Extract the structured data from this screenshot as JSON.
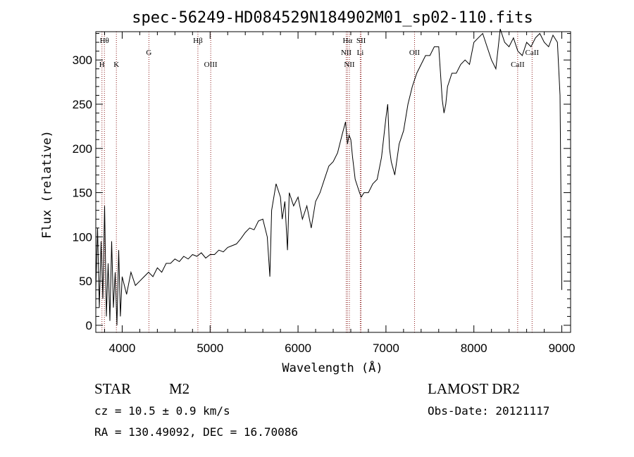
{
  "chart_data": {
    "type": "line",
    "title": "spec-56249-HD084529N184902M01_sp02-110.fits",
    "xlabel": "Wavelength (Å)",
    "ylabel": "Flux (relative)",
    "xlim": [
      3700,
      9100
    ],
    "ylim": [
      -8,
      332
    ],
    "x_ticks": [
      4000,
      5000,
      6000,
      7000,
      8000,
      9000
    ],
    "y_ticks": [
      0,
      50,
      100,
      150,
      200,
      250,
      300
    ],
    "grid": false,
    "series": [
      {
        "x": [
          3700,
          3720,
          3740,
          3760,
          3780,
          3800,
          3820,
          3840,
          3860,
          3880,
          3900,
          3920,
          3940,
          3960,
          3980,
          4000,
          4050,
          4100,
          4150,
          4200,
          4250,
          4300,
          4350,
          4400,
          4450,
          4500,
          4550,
          4600,
          4650,
          4700,
          4750,
          4800,
          4850,
          4900,
          4950,
          5000,
          5050,
          5100,
          5150,
          5200,
          5250,
          5300,
          5350,
          5400,
          5450,
          5500,
          5550,
          5600,
          5650,
          5680,
          5700,
          5750,
          5800,
          5820,
          5850,
          5880,
          5900,
          5950,
          6000,
          6050,
          6100,
          6150,
          6200,
          6250,
          6300,
          6350,
          6400,
          6450,
          6500,
          6540,
          6563,
          6580,
          6600,
          6620,
          6650,
          6700,
          6720,
          6750,
          6800,
          6850,
          6900,
          6950,
          7000,
          7020,
          7040,
          7060,
          7100,
          7150,
          7200,
          7250,
          7300,
          7350,
          7400,
          7450,
          7500,
          7550,
          7600,
          7620,
          7640,
          7660,
          7680,
          7700,
          7750,
          7800,
          7850,
          7900,
          7950,
          8000,
          8050,
          8100,
          8150,
          8200,
          8250,
          8300,
          8350,
          8400,
          8450,
          8500,
          8550,
          8600,
          8650,
          8700,
          8750,
          8800,
          8850,
          8900,
          8950,
          8980,
          9000
        ],
        "values": [
          40,
          110,
          20,
          95,
          30,
          135,
          10,
          70,
          5,
          95,
          20,
          60,
          0,
          85,
          10,
          55,
          35,
          60,
          45,
          50,
          55,
          60,
          55,
          65,
          60,
          70,
          70,
          75,
          72,
          78,
          75,
          80,
          78,
          82,
          76,
          80,
          80,
          85,
          83,
          88,
          90,
          92,
          98,
          105,
          110,
          108,
          118,
          120,
          100,
          55,
          130,
          160,
          145,
          120,
          140,
          85,
          150,
          135,
          145,
          120,
          135,
          110,
          140,
          150,
          165,
          180,
          185,
          195,
          215,
          230,
          205,
          215,
          210,
          190,
          165,
          150,
          145,
          150,
          150,
          160,
          165,
          190,
          235,
          250,
          200,
          185,
          170,
          205,
          220,
          250,
          270,
          285,
          295,
          305,
          305,
          315,
          315,
          285,
          255,
          240,
          250,
          270,
          285,
          285,
          295,
          300,
          295,
          320,
          325,
          330,
          315,
          300,
          290,
          335,
          320,
          315,
          325,
          310,
          305,
          320,
          315,
          325,
          330,
          320,
          315,
          328,
          320,
          260,
          40
        ]
      }
    ],
    "line_markers": [
      {
        "label": "Hθ",
        "x": 3798,
        "row": 1
      },
      {
        "label": "H",
        "x": 3770,
        "row": 3
      },
      {
        "label": "K",
        "x": 3934,
        "row": 3
      },
      {
        "label": "G",
        "x": 4304,
        "row": 2
      },
      {
        "label": "Hβ",
        "x": 4861,
        "row": 1
      },
      {
        "label": "OIII",
        "x": 5007,
        "row": 3
      },
      {
        "label": "Hα",
        "x": 6563,
        "row": 1
      },
      {
        "label": "SII",
        "x": 6717,
        "row": 1
      },
      {
        "label": "NII",
        "x": 6548,
        "row": 2
      },
      {
        "label": "Li",
        "x": 6708,
        "row": 2
      },
      {
        "label": "NII",
        "x": 6584,
        "row": 3
      },
      {
        "label": "OII",
        "x": 7325,
        "row": 2
      },
      {
        "label": "CaII",
        "x": 8498,
        "row": 3
      },
      {
        "label": "CaII",
        "x": 8662,
        "row": 2
      }
    ]
  },
  "info": {
    "class_label": "STAR",
    "subclass": "M2",
    "survey": "LAMOST DR2",
    "cz": "cz = 10.5 ± 0.9 km/s",
    "obs_date": "Obs-Date: 20121117",
    "coords": "RA = 130.49092, DEC =  16.70086"
  }
}
